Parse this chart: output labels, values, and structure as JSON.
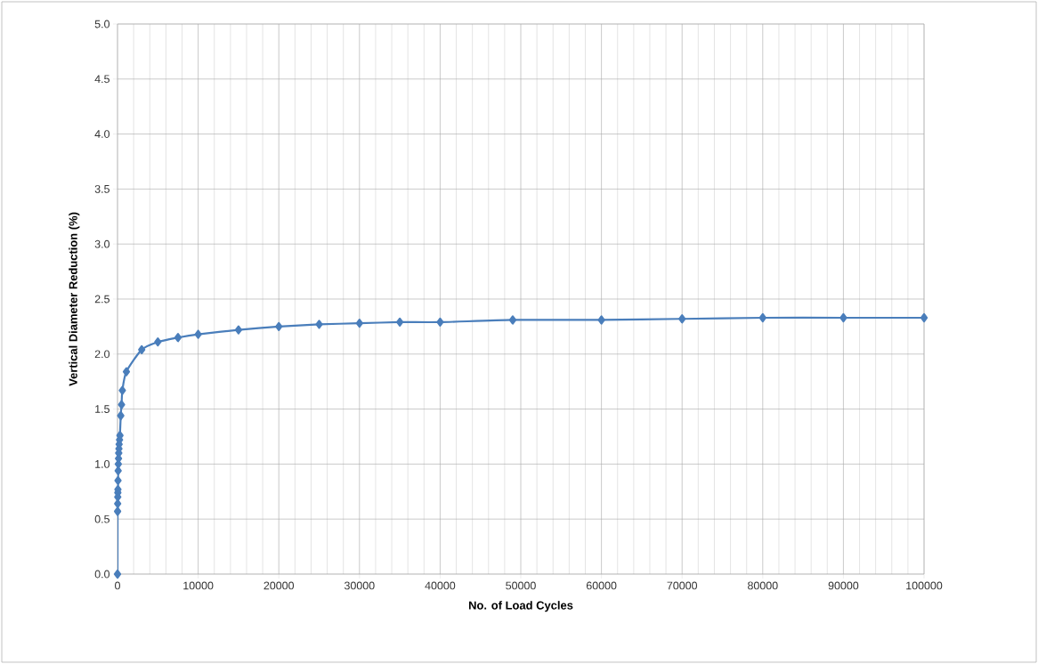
{
  "chart_data": {
    "type": "line",
    "xlabel": "No. of Load Cycles",
    "ylabel": "Vertical Diameter Reduction (%)",
    "x": [
      0,
      10,
      20,
      30,
      40,
      50,
      60,
      80,
      100,
      125,
      150,
      175,
      200,
      250,
      300,
      400,
      500,
      600,
      1100,
      3000,
      5000,
      7500,
      10000,
      15000,
      20000,
      25000,
      30000,
      35000,
      40000,
      49000,
      60000,
      70000,
      80000,
      90000,
      100000
    ],
    "values": [
      0,
      0.57,
      0.64,
      0.7,
      0.74,
      0.77,
      0.85,
      0.94,
      1.0,
      1.05,
      1.1,
      1.14,
      1.18,
      1.22,
      1.26,
      1.44,
      1.54,
      1.67,
      1.84,
      2.04,
      2.11,
      2.15,
      2.18,
      2.22,
      2.25,
      2.27,
      2.28,
      2.29,
      2.29,
      2.31,
      2.31,
      2.32,
      2.33,
      2.33,
      2.33
    ],
    "color": "#4a7ebb",
    "marker": "diamond",
    "line_style": "solid",
    "grid": true,
    "xlim": [
      0,
      100000
    ],
    "ylim": [
      0,
      5
    ],
    "xticks": [
      0,
      10000,
      20000,
      30000,
      40000,
      50000,
      60000,
      70000,
      80000,
      90000,
      100000
    ],
    "yticks": [
      {
        "value": 0,
        "label": "0.0"
      },
      {
        "value": 0.5,
        "label": "0.5"
      },
      {
        "value": 1,
        "label": "1.0"
      },
      {
        "value": 1.5,
        "label": "1.5"
      },
      {
        "value": 2,
        "label": "2.0"
      },
      {
        "value": 2.5,
        "label": "2.5"
      },
      {
        "value": 3,
        "label": "3.0"
      },
      {
        "value": 3.5,
        "label": "3.5"
      },
      {
        "value": 4,
        "label": "4.0"
      },
      {
        "value": 4.5,
        "label": "4.5"
      },
      {
        "value": 5,
        "label": "5.0"
      }
    ]
  }
}
